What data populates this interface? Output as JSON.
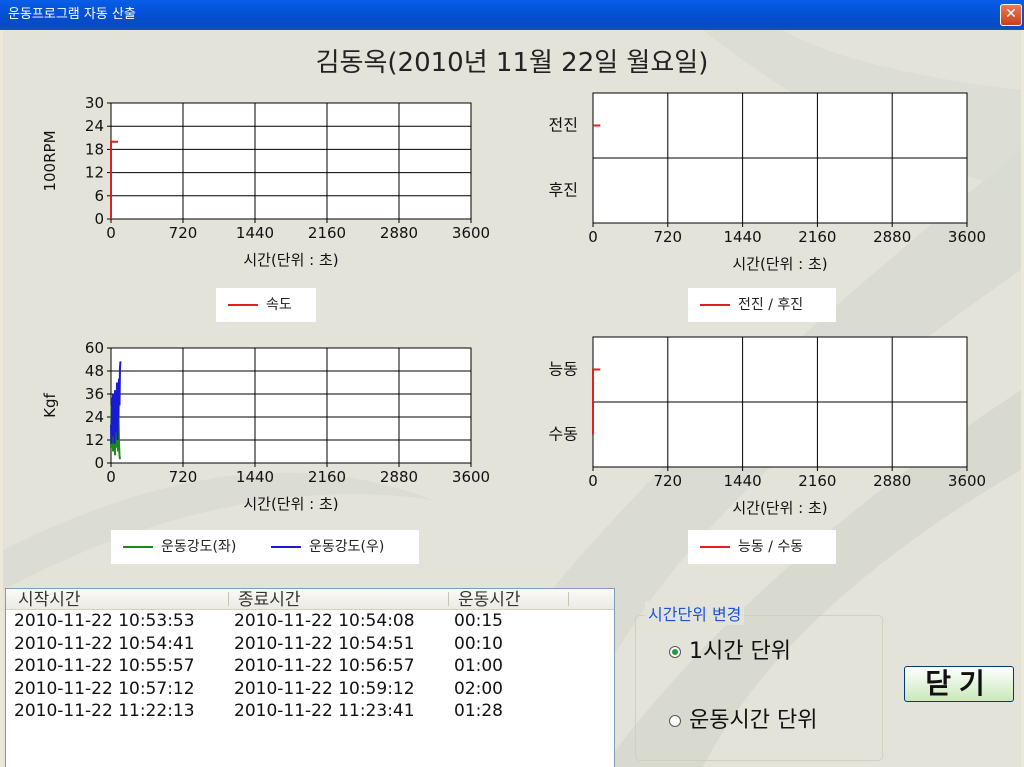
{
  "window": {
    "title": "운동프로그램 자동 산출",
    "close_glyph": "✕"
  },
  "page_title": "김동옥(2010년 11월 22일 월요일)",
  "chart_data": [
    {
      "type": "line",
      "xlabel": "시간(단위 : 초)",
      "ylabel": "100RPM",
      "xlim": [
        0,
        3600
      ],
      "ylim": [
        0,
        30
      ],
      "xticks": [
        "0",
        "720",
        "1440",
        "2160",
        "2880",
        "3600"
      ],
      "yticks": [
        "0",
        "6",
        "12",
        "18",
        "24",
        "30"
      ],
      "grid": true,
      "series": [
        {
          "name": "속도",
          "color": "#e02020",
          "x": [
            0,
            0,
            15,
            70
          ],
          "y": [
            0,
            20,
            20,
            20
          ]
        }
      ]
    },
    {
      "type": "line",
      "xlabel": "시간(단위 : 초)",
      "ylabel": "",
      "xlim": [
        0,
        3600
      ],
      "ylim": [
        0,
        2
      ],
      "xticks": [
        "0",
        "720",
        "1440",
        "2160",
        "2880",
        "3600"
      ],
      "ycategories": [
        "전진",
        "후진"
      ],
      "grid": true,
      "series": [
        {
          "name": "전진 / 후진",
          "color": "#e02020",
          "x": [
            0,
            70
          ],
          "y": [
            1.5,
            1.5
          ]
        }
      ]
    },
    {
      "type": "line",
      "xlabel": "시간(단위 : 초)",
      "ylabel": "Kgf",
      "xlim": [
        0,
        3600
      ],
      "ylim": [
        0,
        60
      ],
      "xticks": [
        "0",
        "720",
        "1440",
        "2160",
        "2880",
        "3600"
      ],
      "yticks": [
        "0",
        "12",
        "24",
        "36",
        "48",
        "60"
      ],
      "grid": true,
      "series": [
        {
          "name": "운동강도(좌)",
          "color": "#1a8a1a",
          "x": [
            0,
            5,
            10,
            15,
            20,
            25,
            30,
            35,
            40,
            45,
            50,
            55,
            60,
            65,
            70,
            75,
            80,
            85,
            90
          ],
          "y": [
            8,
            30,
            12,
            34,
            6,
            36,
            10,
            28,
            4,
            38,
            14,
            32,
            8,
            40,
            6,
            26,
            10,
            4,
            2
          ]
        },
        {
          "name": "운동강도(우)",
          "color": "#1a1ad0",
          "x": [
            0,
            5,
            10,
            15,
            20,
            25,
            30,
            35,
            40,
            45,
            50,
            55,
            60,
            65,
            70,
            75,
            80,
            85,
            90,
            95
          ],
          "y": [
            20,
            10,
            30,
            14,
            36,
            18,
            26,
            10,
            38,
            16,
            32,
            20,
            42,
            12,
            28,
            24,
            44,
            30,
            50,
            53
          ]
        }
      ]
    },
    {
      "type": "line",
      "xlabel": "시간(단위 : 초)",
      "ylabel": "",
      "xlim": [
        0,
        3600
      ],
      "ylim": [
        0,
        2
      ],
      "xticks": [
        "0",
        "720",
        "1440",
        "2160",
        "2880",
        "3600"
      ],
      "ycategories": [
        "능동",
        "수동"
      ],
      "grid": true,
      "series": [
        {
          "name": "능동 / 수동",
          "color": "#e02020",
          "x": [
            0,
            0,
            70
          ],
          "y": [
            0.5,
            1.5,
            1.5
          ]
        }
      ]
    }
  ],
  "list": {
    "columns": [
      "시작시간",
      "종료시간",
      "운동시간"
    ],
    "rows": [
      [
        "2010-11-22 10:53:53",
        "2010-11-22 10:54:08",
        "00:15"
      ],
      [
        "2010-11-22 10:54:41",
        "2010-11-22 10:54:51",
        "00:10"
      ],
      [
        "2010-11-22 10:55:57",
        "2010-11-22 10:56:57",
        "01:00"
      ],
      [
        "2010-11-22 10:57:12",
        "2010-11-22 10:59:12",
        "02:00"
      ],
      [
        "2010-11-22 11:22:13",
        "2010-11-22 11:23:41",
        "01:28"
      ]
    ]
  },
  "time_unit": {
    "title": "시간단위 변경",
    "options": [
      "1시간 단위",
      "운동시간 단위"
    ],
    "selected": "1시간 단위"
  },
  "close_button": "닫기"
}
